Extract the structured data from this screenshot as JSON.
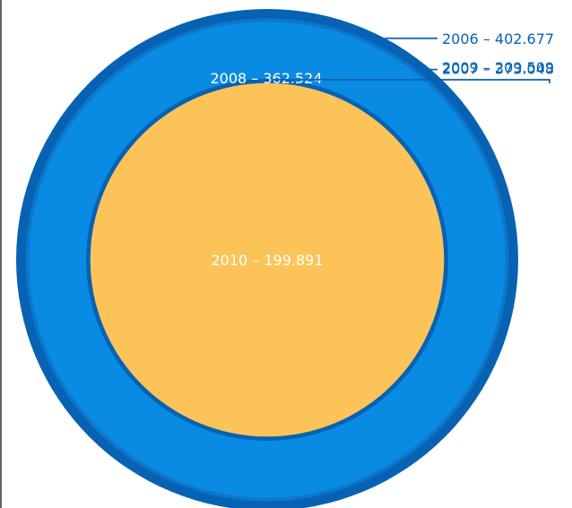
{
  "chart_data": {
    "type": "pie",
    "variant": "nested-circles",
    "title": "",
    "series": [
      {
        "year": "2006",
        "value": 402.677,
        "label": "2006 – 402.677",
        "color": "#0762B4",
        "label_color": "#0762B4"
      },
      {
        "year": "2007",
        "value": 373.048,
        "label": "2007 – 373.048",
        "color": "#0C77CB",
        "label_color": "#0762B4"
      },
      {
        "year": "2008",
        "value": 362.524,
        "label": "2008 – 362.524",
        "color": "#0A8BE3",
        "label_color": "#FFFFFF"
      },
      {
        "year": "2009",
        "value": 209.509,
        "label": "2009 – 209.509",
        "color": "#0762B4",
        "label_color": "#0762B4"
      },
      {
        "year": "2010",
        "value": 199.891,
        "label": "2010 – 199.891",
        "color": "#FCC458",
        "label_color": "#FFFFFF"
      }
    ],
    "leader_line_color": "#0762B4",
    "frame_color": "#333333"
  }
}
